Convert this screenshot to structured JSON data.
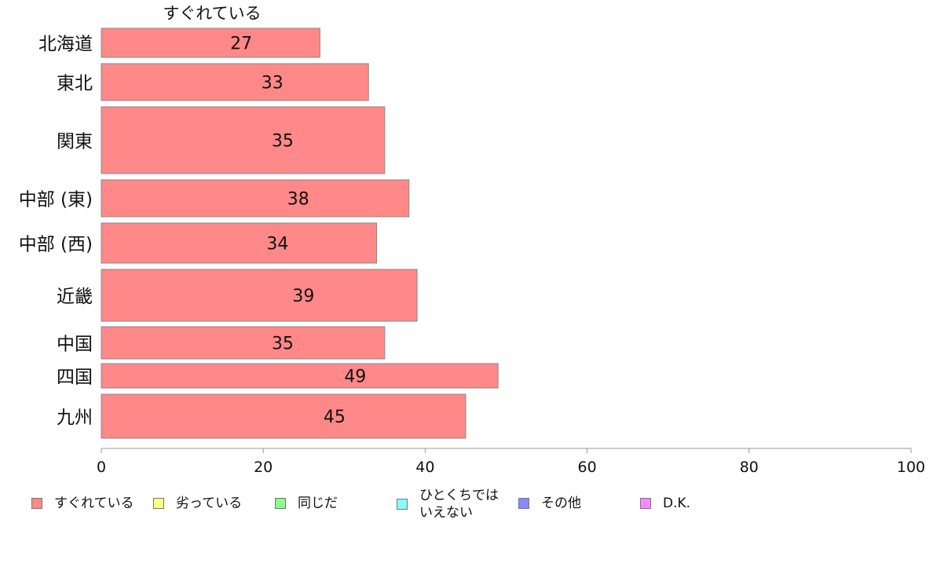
{
  "chart_data": {
    "type": "bar",
    "orientation": "horizontal",
    "title": "すぐれている",
    "categories": [
      "北海道",
      "東北",
      "関東",
      "中部 (東)",
      "中部 (西)",
      "近畿",
      "中国",
      "四国",
      "九州"
    ],
    "series": [
      {
        "name": "すぐれている",
        "color": "#ff8888",
        "values": [
          27,
          33,
          35,
          38,
          34,
          39,
          35,
          49,
          45
        ]
      }
    ],
    "data_labels": [
      "27",
      "33",
      "35",
      "38",
      "34",
      "39",
      "35",
      "49",
      "45"
    ],
    "xlim": [
      0,
      100
    ],
    "xticks": [
      0,
      20,
      40,
      60,
      80,
      100
    ],
    "grid": false,
    "legend_position": "bottom",
    "legend": [
      {
        "label": "すぐれている",
        "color": "#ff8888"
      },
      {
        "label": "劣っている",
        "color": "#ffff88"
      },
      {
        "label": "同じだ",
        "color": "#88ff88"
      },
      {
        "label": "ひとくちでは\nいえない",
        "color": "#88ffff"
      },
      {
        "label": "その他",
        "color": "#8888ff"
      },
      {
        "label": "D.K.",
        "color": "#ff88ff"
      }
    ]
  }
}
